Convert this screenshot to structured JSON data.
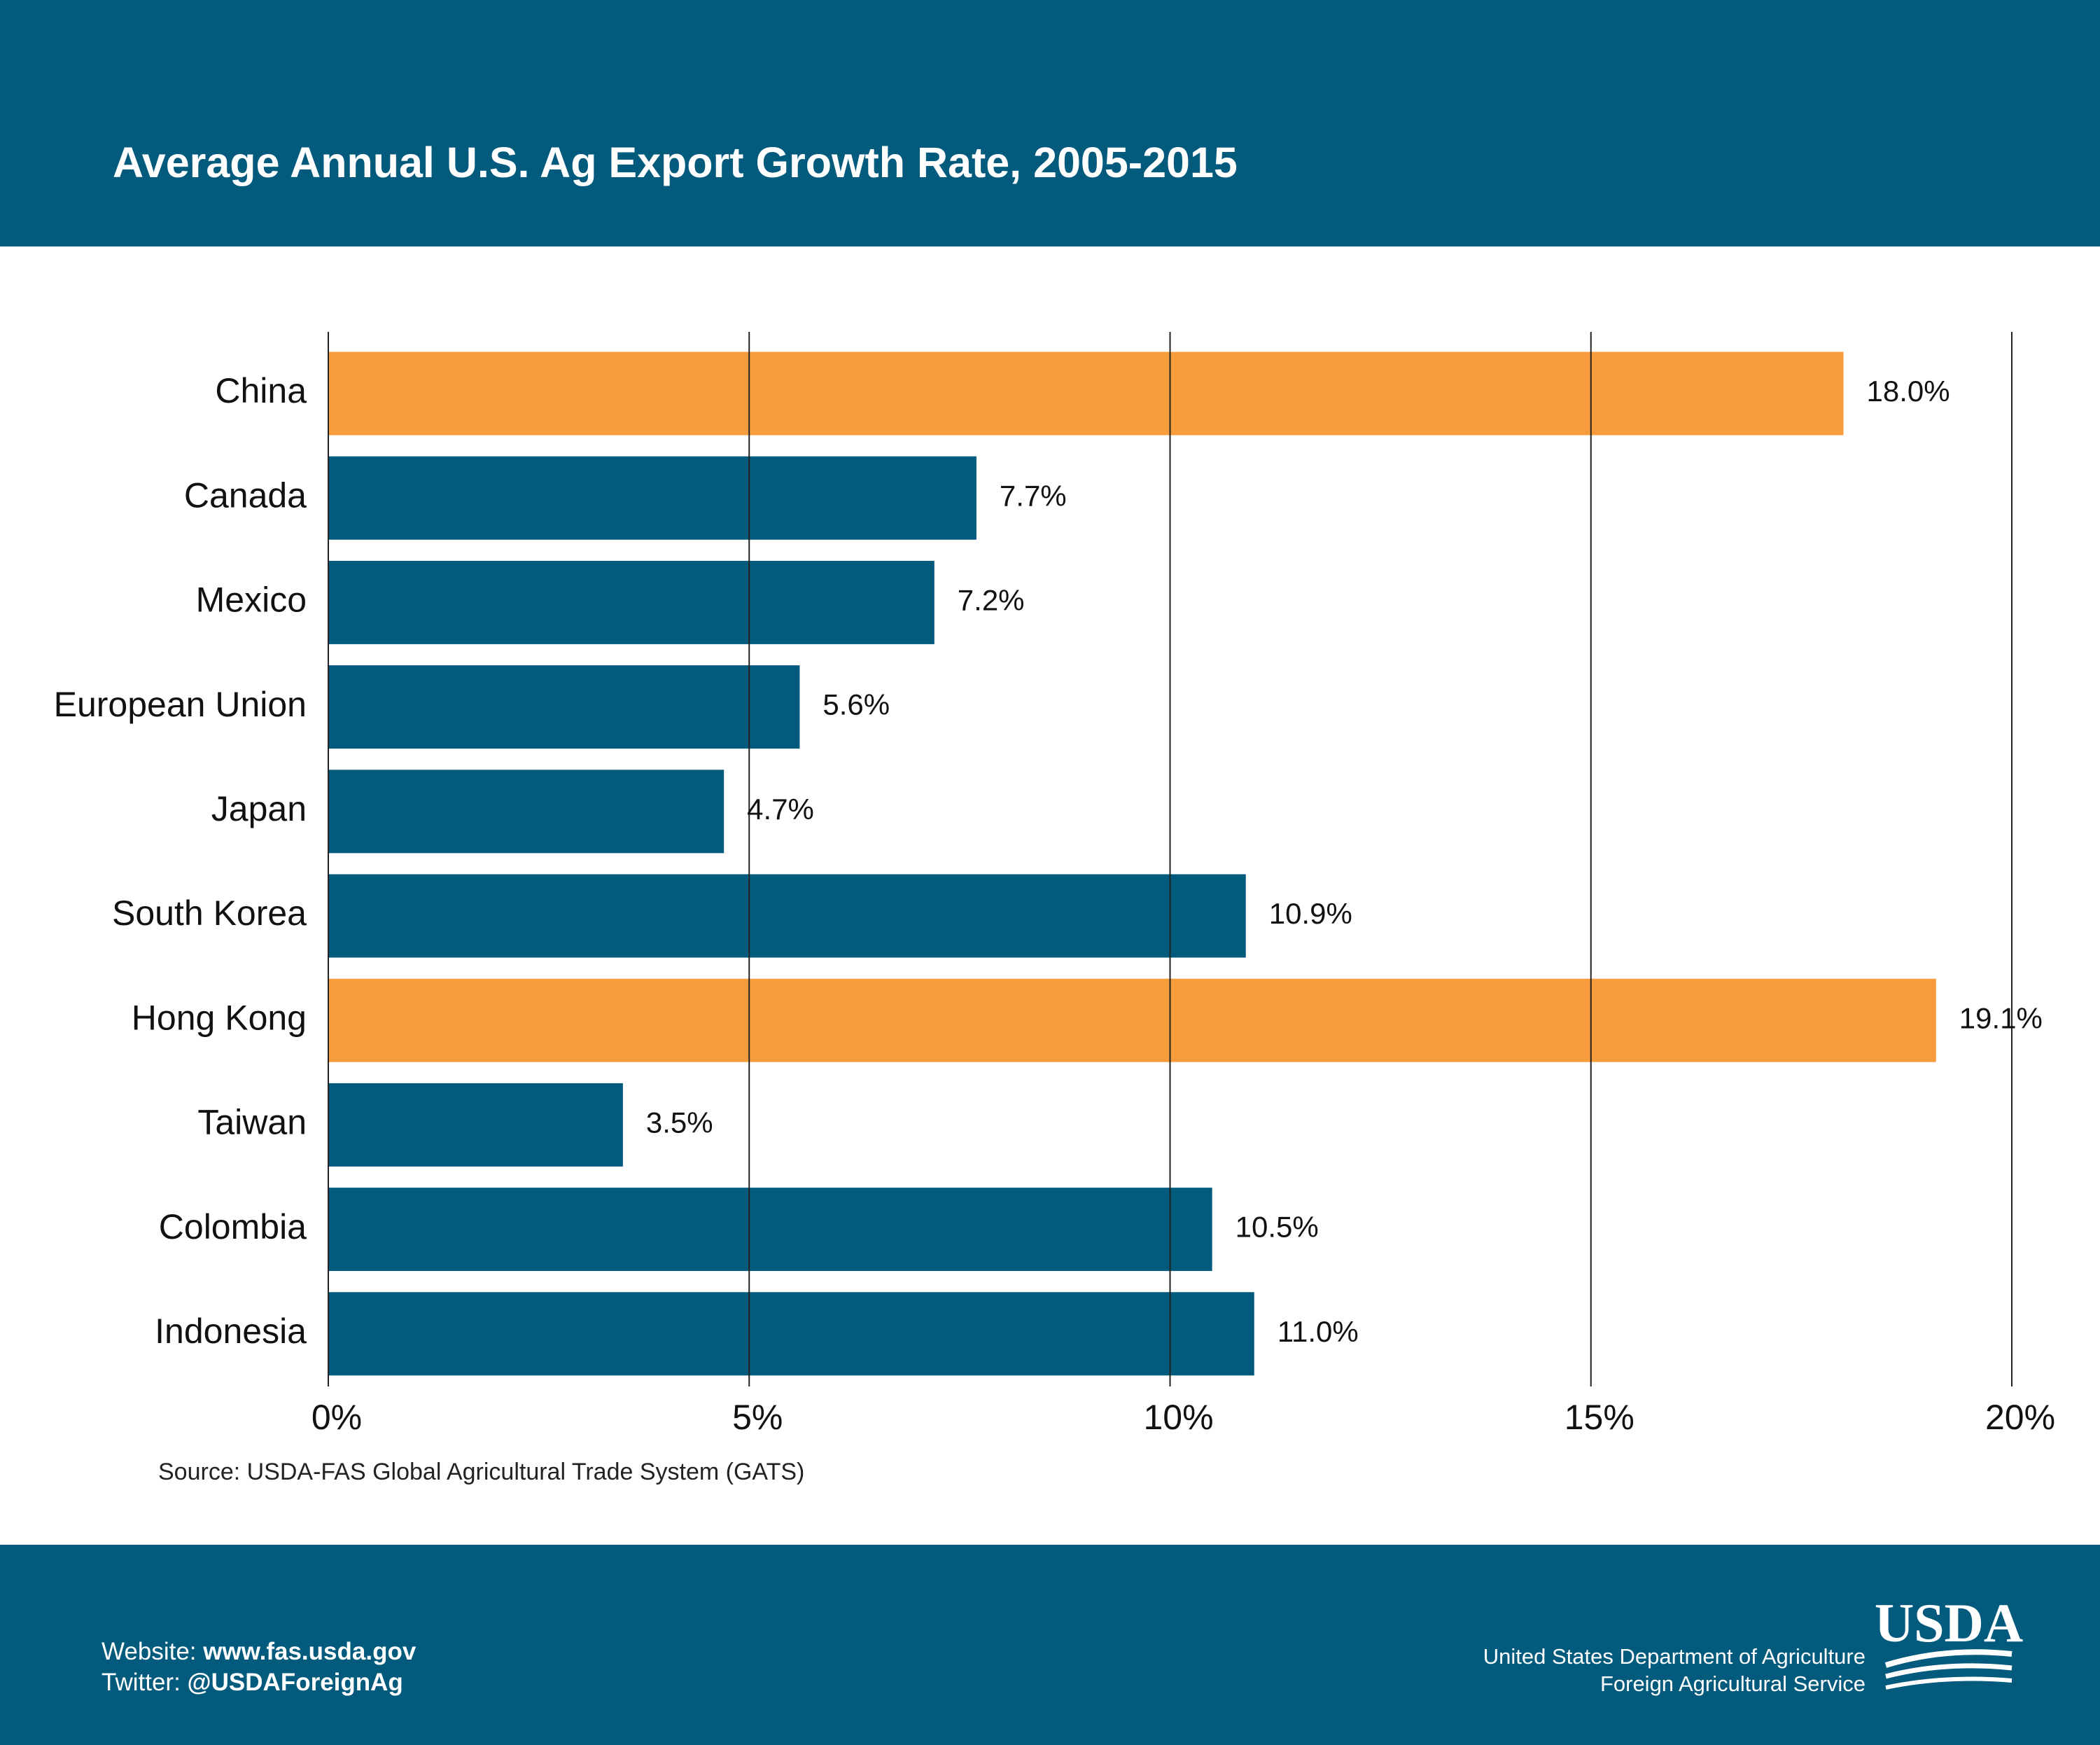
{
  "chart_data": {
    "type": "bar",
    "orientation": "horizontal",
    "title": "Average Annual U.S. Ag Export Growth Rate, 2005-2015",
    "categories": [
      "China",
      "Canada",
      "Mexico",
      "European Union",
      "Japan",
      "South Korea",
      "Hong Kong",
      "Taiwan",
      "Colombia",
      "Indonesia"
    ],
    "values": [
      18.0,
      7.7,
      7.2,
      5.6,
      4.7,
      10.9,
      19.1,
      3.5,
      10.5,
      11.0
    ],
    "value_labels": [
      "18.0%",
      "7.7%",
      "7.2%",
      "5.6%",
      "4.7%",
      "10.9%",
      "19.1%",
      "3.5%",
      "10.5%",
      "11.0%"
    ],
    "colors": [
      "#f79c3c",
      "#025a7c",
      "#025a7c",
      "#025a7c",
      "#025a7c",
      "#025a7c",
      "#f79c3c",
      "#025a7c",
      "#025a7c",
      "#025a7c"
    ],
    "xlim": [
      0,
      20
    ],
    "xticks": [
      {
        "value": 0,
        "label": "0%"
      },
      {
        "value": 5,
        "label": "5%"
      },
      {
        "value": 10,
        "label": "10%"
      },
      {
        "value": 15,
        "label": "15%"
      },
      {
        "value": 20,
        "label": "20%"
      }
    ],
    "grid": true,
    "source": "Source:  USDA-FAS Global Agricultural Trade System (GATS)"
  },
  "footer": {
    "website_label": "Website: ",
    "website": "www.fas.usda.gov",
    "twitter_label": "Twitter: ",
    "twitter": "@USDAForeignAg",
    "agency_line1": "United States Department of Agriculture",
    "agency_line2": "Foreign Agricultural Service",
    "logo": "USDA"
  }
}
